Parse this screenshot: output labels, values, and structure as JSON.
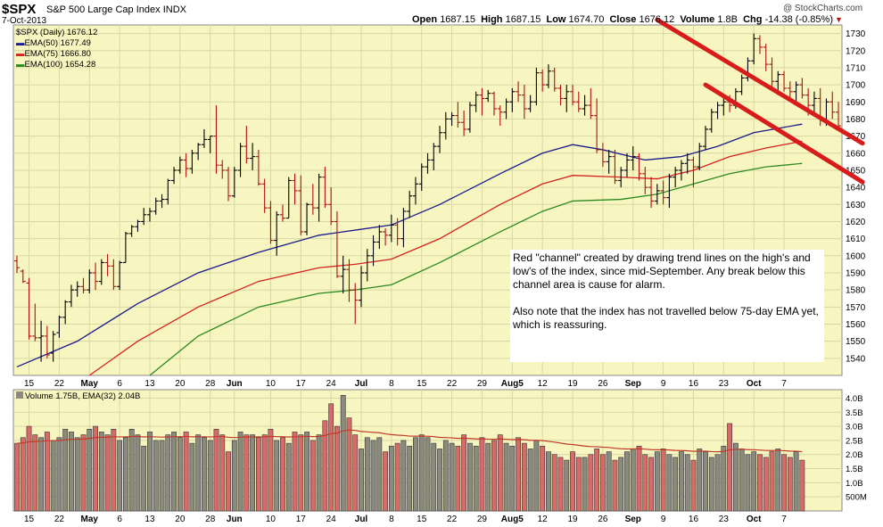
{
  "header": {
    "symbol": "$SPX",
    "name": "S&P 500 Large Cap Index",
    "exchange": "INDX",
    "date": "7-Oct-2013",
    "credit": "@ StockCharts.com",
    "open_label": "Open",
    "open": "1687.15",
    "high_label": "High",
    "high": "1687.15",
    "low_label": "Low",
    "low": "1674.70",
    "close_label": "Close",
    "close": "1676.12",
    "volume_label": "Volume",
    "volume": "1.8B",
    "chg_label": "Chg",
    "chg": "-14.38 (-0.85%)"
  },
  "legend": {
    "series_main": "$SPX (Daily) 1676.12",
    "ema50": "EMA(50) 1677.49",
    "ema75": "EMA(75) 1666.80",
    "ema100": "EMA(100) 1654.28",
    "volume": "Volume 1.75B, EMA(32) 2.04B"
  },
  "annotation": {
    "line1": "Red \"channel\" created by drawing trend lines on the high's and low's of the index, since mid-September.   Any break below this channel area is cause for alarm.",
    "line2": "Also note that the index has not travelled below 75-day EMA yet, which is reassuring."
  },
  "colors": {
    "panel_bg": "#f8f6c0",
    "price_bar": "#000000",
    "ema50": "#1a1a8c",
    "ema75": "#d42222",
    "ema100": "#2a8a1e",
    "channel": "#d81c1c",
    "vol_up": "#8a8a80",
    "vol_down": "#d96a6a",
    "vol_ema": "#c23a2a"
  },
  "chart_data": {
    "type": "ohlc",
    "price_axis": {
      "min": 1530,
      "max": 1735,
      "ticks": [
        1540,
        1550,
        1560,
        1570,
        1580,
        1590,
        1600,
        1610,
        1620,
        1630,
        1640,
        1650,
        1660,
        1670,
        1680,
        1690,
        1700,
        1710,
        1720,
        1730
      ]
    },
    "volume_axis": {
      "ticks": [
        "500M",
        "1.0B",
        "1.5B",
        "2.0B",
        "2.5B",
        "3.0B",
        "3.5B",
        "4.0B"
      ]
    },
    "x_ticks": [
      "15",
      "22",
      "May",
      "6",
      "13",
      "20",
      "28",
      "Jun",
      "10",
      "17",
      "24",
      "Jul",
      "8",
      "15",
      "22",
      "29",
      "Aug5",
      "12",
      "19",
      "26",
      "Sep",
      "9",
      "16",
      "23",
      "Oct",
      "7"
    ],
    "x_tick_index": [
      2,
      7,
      12,
      17,
      22,
      27,
      32,
      36,
      42,
      47,
      52,
      57,
      62,
      67,
      72,
      77,
      82,
      87,
      92,
      97,
      102,
      107,
      112,
      117,
      122,
      127
    ],
    "ohlc": [
      [
        1597,
        1600,
        1590,
        1593
      ],
      [
        1591,
        1592,
        1584,
        1585
      ],
      [
        1584,
        1587,
        1551,
        1553
      ],
      [
        1553,
        1572,
        1550,
        1552
      ],
      [
        1552,
        1562,
        1538,
        1553
      ],
      [
        1553,
        1559,
        1540,
        1542
      ],
      [
        1543,
        1556,
        1538,
        1554
      ],
      [
        1555,
        1565,
        1552,
        1564
      ],
      [
        1564,
        1574,
        1560,
        1573
      ],
      [
        1573,
        1583,
        1570,
        1580
      ],
      [
        1580,
        1585,
        1576,
        1582
      ],
      [
        1582,
        1587,
        1578,
        1580
      ],
      [
        1580,
        1592,
        1578,
        1590
      ],
      [
        1590,
        1596,
        1580,
        1585
      ],
      [
        1585,
        1598,
        1583,
        1596
      ],
      [
        1596,
        1601,
        1588,
        1594
      ],
      [
        1594,
        1598,
        1580,
        1582
      ],
      [
        1582,
        1597,
        1580,
        1596
      ],
      [
        1596,
        1614,
        1596,
        1613
      ],
      [
        1613,
        1618,
        1611,
        1617
      ],
      [
        1617,
        1621,
        1614,
        1620
      ],
      [
        1620,
        1628,
        1618,
        1624
      ],
      [
        1624,
        1628,
        1620,
        1626
      ],
      [
        1626,
        1634,
        1624,
        1632
      ],
      [
        1632,
        1636,
        1628,
        1633
      ],
      [
        1633,
        1645,
        1630,
        1644
      ],
      [
        1644,
        1652,
        1642,
        1650
      ],
      [
        1650,
        1658,
        1648,
        1656
      ],
      [
        1656,
        1660,
        1646,
        1651
      ],
      [
        1651,
        1662,
        1648,
        1660
      ],
      [
        1660,
        1666,
        1656,
        1665
      ],
      [
        1665,
        1674,
        1663,
        1668
      ],
      [
        1668,
        1670,
        1660,
        1670
      ],
      [
        1670,
        1688,
        1648,
        1653
      ],
      [
        1653,
        1656,
        1645,
        1650
      ],
      [
        1650,
        1652,
        1632,
        1635
      ],
      [
        1635,
        1652,
        1634,
        1650
      ],
      [
        1650,
        1666,
        1646,
        1664
      ],
      [
        1664,
        1676,
        1654,
        1657
      ],
      [
        1657,
        1666,
        1650,
        1658
      ],
      [
        1658,
        1662,
        1641,
        1642
      ],
      [
        1642,
        1645,
        1625,
        1628
      ],
      [
        1628,
        1632,
        1607,
        1609
      ],
      [
        1609,
        1626,
        1600,
        1624
      ],
      [
        1624,
        1630,
        1620,
        1622
      ],
      [
        1622,
        1646,
        1622,
        1644
      ],
      [
        1644,
        1648,
        1630,
        1638
      ],
      [
        1638,
        1647,
        1612,
        1614
      ],
      [
        1614,
        1631,
        1612,
        1630
      ],
      [
        1630,
        1642,
        1624,
        1628
      ],
      [
        1628,
        1648,
        1620,
        1646
      ],
      [
        1646,
        1652,
        1628,
        1630
      ],
      [
        1630,
        1640,
        1618,
        1620
      ],
      [
        1620,
        1626,
        1587,
        1588
      ],
      [
        1588,
        1600,
        1578,
        1592
      ],
      [
        1592,
        1598,
        1573,
        1580
      ],
      [
        1580,
        1584,
        1560,
        1574
      ],
      [
        1574,
        1594,
        1570,
        1590
      ],
      [
        1590,
        1604,
        1585,
        1600
      ],
      [
        1600,
        1612,
        1594,
        1608
      ],
      [
        1608,
        1618,
        1604,
        1614
      ],
      [
        1614,
        1616,
        1606,
        1612
      ],
      [
        1612,
        1624,
        1608,
        1618
      ],
      [
        1618,
        1622,
        1606,
        1610
      ],
      [
        1610,
        1628,
        1605,
        1626
      ],
      [
        1626,
        1638,
        1622,
        1635
      ],
      [
        1635,
        1646,
        1630,
        1642
      ],
      [
        1642,
        1654,
        1638,
        1652
      ],
      [
        1652,
        1660,
        1648,
        1656
      ],
      [
        1656,
        1666,
        1650,
        1664
      ],
      [
        1664,
        1676,
        1660,
        1672
      ],
      [
        1672,
        1684,
        1668,
        1680
      ],
      [
        1680,
        1684,
        1676,
        1682
      ],
      [
        1682,
        1690,
        1675,
        1678
      ],
      [
        1678,
        1685,
        1670,
        1674
      ],
      [
        1674,
        1690,
        1672,
        1688
      ],
      [
        1688,
        1696,
        1684,
        1694
      ],
      [
        1694,
        1698,
        1682,
        1692
      ],
      [
        1692,
        1697,
        1690,
        1695
      ],
      [
        1695,
        1696,
        1682,
        1686
      ],
      [
        1686,
        1688,
        1676,
        1684
      ],
      [
        1684,
        1692,
        1680,
        1690
      ],
      [
        1690,
        1698,
        1684,
        1696
      ],
      [
        1696,
        1702,
        1690,
        1694
      ],
      [
        1694,
        1700,
        1680,
        1686
      ],
      [
        1686,
        1694,
        1684,
        1690
      ],
      [
        1690,
        1710,
        1688,
        1707
      ],
      [
        1707,
        1709,
        1696,
        1700
      ],
      [
        1700,
        1712,
        1698,
        1708
      ],
      [
        1708,
        1710,
        1696,
        1698
      ],
      [
        1698,
        1700,
        1688,
        1692
      ],
      [
        1692,
        1700,
        1684,
        1696
      ],
      [
        1696,
        1700,
        1688,
        1690
      ],
      [
        1690,
        1696,
        1684,
        1686
      ],
      [
        1686,
        1694,
        1682,
        1688
      ],
      [
        1688,
        1698,
        1680,
        1682
      ],
      [
        1682,
        1692,
        1660,
        1662
      ],
      [
        1662,
        1666,
        1652,
        1655
      ],
      [
        1655,
        1662,
        1648,
        1658
      ],
      [
        1658,
        1662,
        1642,
        1644
      ],
      [
        1644,
        1652,
        1640,
        1650
      ],
      [
        1650,
        1660,
        1646,
        1656
      ],
      [
        1656,
        1664,
        1650,
        1658
      ],
      [
        1658,
        1660,
        1644,
        1648
      ],
      [
        1648,
        1652,
        1636,
        1640
      ],
      [
        1640,
        1646,
        1628,
        1632
      ],
      [
        1632,
        1642,
        1630,
        1638
      ],
      [
        1638,
        1644,
        1630,
        1634
      ],
      [
        1634,
        1648,
        1628,
        1646
      ],
      [
        1646,
        1652,
        1640,
        1650
      ],
      [
        1650,
        1656,
        1644,
        1654
      ],
      [
        1654,
        1660,
        1648,
        1656
      ],
      [
        1656,
        1658,
        1640,
        1652
      ],
      [
        1652,
        1666,
        1650,
        1664
      ],
      [
        1664,
        1676,
        1662,
        1674
      ],
      [
        1674,
        1686,
        1672,
        1684
      ],
      [
        1684,
        1690,
        1680,
        1688
      ],
      [
        1688,
        1694,
        1682,
        1690
      ],
      [
        1690,
        1694,
        1684,
        1688
      ],
      [
        1688,
        1698,
        1686,
        1696
      ],
      [
        1696,
        1706,
        1694,
        1704
      ],
      [
        1704,
        1716,
        1702,
        1714
      ],
      [
        1714,
        1730,
        1712,
        1727
      ],
      [
        1727,
        1729,
        1718,
        1722
      ],
      [
        1722,
        1724,
        1708,
        1712
      ],
      [
        1712,
        1716,
        1698,
        1702
      ],
      [
        1702,
        1708,
        1694,
        1706
      ],
      [
        1706,
        1708,
        1696,
        1698
      ],
      [
        1698,
        1702,
        1690,
        1696
      ],
      [
        1696,
        1702,
        1690,
        1700
      ],
      [
        1700,
        1704,
        1692,
        1694
      ],
      [
        1694,
        1698,
        1682,
        1688
      ],
      [
        1688,
        1696,
        1684,
        1692
      ],
      [
        1692,
        1698,
        1676,
        1680
      ],
      [
        1680,
        1692,
        1676,
        1690
      ],
      [
        1690,
        1696,
        1680,
        1684
      ],
      [
        1684,
        1690,
        1674,
        1676
      ]
    ],
    "ema50": [
      [
        0,
        1535
      ],
      [
        10,
        1550
      ],
      [
        20,
        1572
      ],
      [
        30,
        1590
      ],
      [
        40,
        1602
      ],
      [
        50,
        1612
      ],
      [
        56,
        1615
      ],
      [
        62,
        1618
      ],
      [
        70,
        1630
      ],
      [
        80,
        1648
      ],
      [
        87,
        1660
      ],
      [
        92,
        1665
      ],
      [
        97,
        1662
      ],
      [
        104,
        1656
      ],
      [
        110,
        1658
      ],
      [
        116,
        1664
      ],
      [
        122,
        1672
      ],
      [
        130,
        1677
      ]
    ],
    "ema75": [
      [
        12,
        1530
      ],
      [
        20,
        1550
      ],
      [
        30,
        1570
      ],
      [
        40,
        1585
      ],
      [
        50,
        1593
      ],
      [
        56,
        1595
      ],
      [
        62,
        1598
      ],
      [
        70,
        1610
      ],
      [
        80,
        1630
      ],
      [
        87,
        1642
      ],
      [
        92,
        1647
      ],
      [
        100,
        1646
      ],
      [
        106,
        1645
      ],
      [
        112,
        1650
      ],
      [
        118,
        1658
      ],
      [
        124,
        1663
      ],
      [
        130,
        1667
      ]
    ],
    "ema100": [
      [
        22,
        1530
      ],
      [
        30,
        1553
      ],
      [
        40,
        1570
      ],
      [
        50,
        1578
      ],
      [
        56,
        1580
      ],
      [
        62,
        1583
      ],
      [
        70,
        1596
      ],
      [
        80,
        1614
      ],
      [
        87,
        1626
      ],
      [
        92,
        1632
      ],
      [
        100,
        1633
      ],
      [
        106,
        1636
      ],
      [
        112,
        1642
      ],
      [
        118,
        1648
      ],
      [
        124,
        1652
      ],
      [
        130,
        1654
      ]
    ],
    "channel_upper": [
      [
        106,
        1738
      ],
      [
        130,
        1687
      ]
    ],
    "channel_lower": [
      [
        114,
        1700
      ],
      [
        130,
        1665
      ]
    ],
    "volume": [
      2.4,
      2.6,
      3.0,
      2.7,
      2.6,
      2.8,
      2.5,
      2.6,
      2.9,
      2.8,
      2.6,
      2.7,
      2.9,
      3.0,
      2.8,
      2.7,
      2.9,
      2.5,
      2.6,
      2.9,
      2.7,
      2.3,
      2.8,
      2.5,
      2.5,
      2.7,
      2.8,
      2.6,
      2.8,
      2.4,
      2.7,
      2.6,
      2.5,
      2.9,
      2.7,
      2.1,
      2.5,
      2.8,
      2.7,
      2.7,
      2.6,
      2.7,
      2.9,
      2.5,
      2.6,
      2.4,
      2.8,
      2.7,
      2.8,
      2.5,
      2.7,
      3.2,
      3.8,
      3.0,
      4.1,
      3.3,
      2.7,
      2.2,
      2.6,
      2.5,
      2.6,
      2.1,
      2.3,
      2.4,
      2.5,
      2.3,
      2.6,
      2.7,
      2.6,
      2.4,
      2.2,
      2.5,
      2.4,
      2.3,
      2.7,
      2.4,
      2.3,
      2.6,
      2.4,
      2.5,
      2.7,
      2.4,
      2.3,
      2.6,
      2.4,
      2.2,
      2.5,
      2.3,
      2.1,
      2.0,
      1.9,
      1.8,
      2.1,
      1.9,
      1.9,
      2.0,
      2.2,
      2.0,
      2.1,
      1.8,
      1.9,
      2.1,
      2.2,
      2.3,
      2.0,
      1.9,
      2.1,
      2.2,
      2.0,
      1.9,
      2.1,
      2.0,
      1.8,
      2.2,
      2.1,
      1.9,
      2.0,
      2.3,
      3.1,
      2.4,
      2.2,
      2.0,
      2.1,
      2.0,
      1.9,
      2.1,
      2.2,
      2.0,
      1.9,
      2.1,
      1.8
    ]
  }
}
